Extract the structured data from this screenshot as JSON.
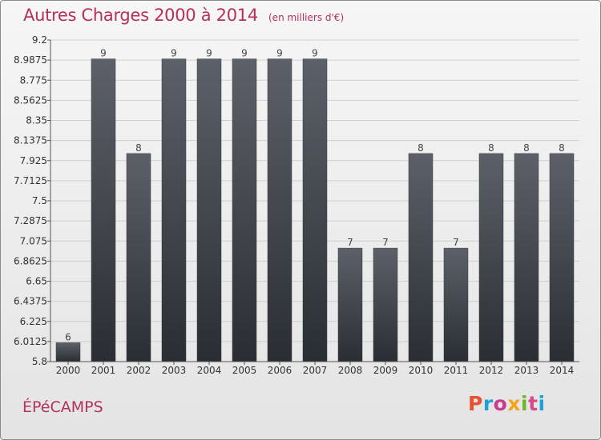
{
  "header": {
    "title": "Autres Charges 2000 à 2014",
    "subtitle": "(en milliers d'€)"
  },
  "footer": {
    "commune": "ÉPéCAMPS",
    "brand": "Proxiti",
    "brand_colors": [
      "#e8502f",
      "#1fa0d8",
      "#c93b8f",
      "#f0a51b",
      "#6cb52d",
      "#d94a8c",
      "#1fa0d8"
    ]
  },
  "colors": {
    "title": "#b5305c",
    "bar_top": "#5c6068",
    "bar_bottom": "#2a2e34",
    "grid": "#cfcfcf"
  },
  "chart_data": {
    "type": "bar",
    "categories": [
      "2000",
      "2001",
      "2002",
      "2003",
      "2004",
      "2005",
      "2006",
      "2007",
      "2008",
      "2009",
      "2010",
      "2011",
      "2012",
      "2013",
      "2014"
    ],
    "values": [
      6,
      9,
      8,
      9,
      9,
      9,
      9,
      9,
      7,
      7,
      8,
      7,
      8,
      8,
      8
    ],
    "data_labels": [
      "6",
      "9",
      "8",
      "9",
      "9",
      "9",
      "9",
      "9",
      "7",
      "7",
      "8",
      "7",
      "8",
      "8",
      "8"
    ],
    "ylim": [
      5.8,
      9.2
    ],
    "yticks": [
      "9.2",
      "8.9875",
      "8.775",
      "8.5625",
      "8.35",
      "8.1375",
      "7.925",
      "7.7125",
      "7.5",
      "7.2875",
      "7.075",
      "6.8625",
      "6.65",
      "6.4375",
      "6.225",
      "6.0125",
      "5.8"
    ],
    "grid": true,
    "xlabel": "",
    "ylabel": ""
  }
}
